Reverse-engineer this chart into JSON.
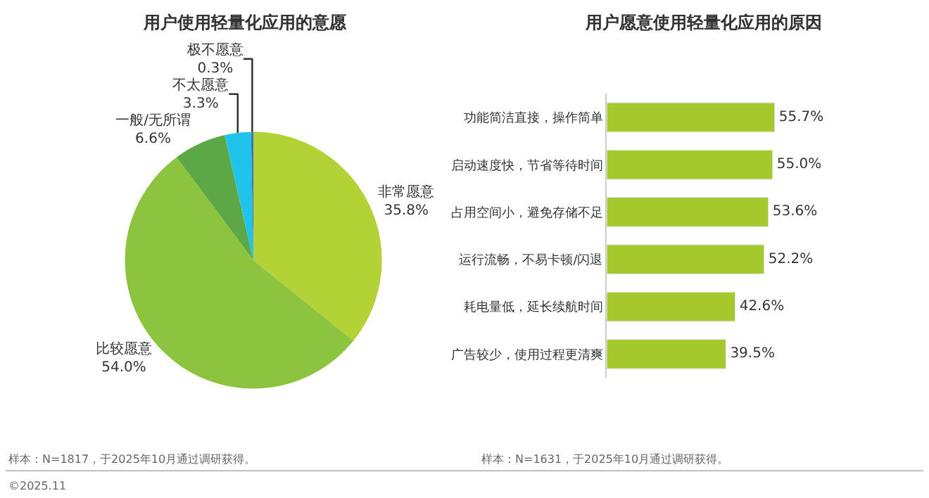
{
  "chart_data": [
    {
      "type": "pie",
      "title": "用户使用轻量化应用的意愿",
      "categories": [
        "非常愿意",
        "比较愿意",
        "一般/无所谓",
        "不太愿意",
        "极不愿意"
      ],
      "values": [
        35.8,
        54.0,
        6.6,
        3.3,
        0.3
      ],
      "value_labels": [
        "35.8%",
        "54.0%",
        "6.6%",
        "3.3%",
        "0.3%"
      ],
      "colors": [
        "#b3d236",
        "#8cc43f",
        "#5ca847",
        "#20c4ea",
        "#3b73b9"
      ],
      "annotations": [
        "样本：N=1817，于2025年10月通过调研获得。",
        "©2025.11"
      ]
    },
    {
      "type": "bar",
      "orientation": "horizontal",
      "title": "用户愿意使用轻量化应用的原因",
      "categories": [
        "功能简洁直接，操作简单",
        "启动速度快，节省等待时间",
        "占用空间小，避免存储不足",
        "运行流畅，不易卡顿/闪退",
        "耗电量低，延长续航时间",
        "广告较少，使用过程更清爽"
      ],
      "values": [
        55.7,
        55.0,
        53.6,
        52.2,
        42.6,
        39.5
      ],
      "value_labels": [
        "55.7%",
        "55.0%",
        "53.6%",
        "52.2%",
        "42.6%",
        "39.5%"
      ],
      "color": "#a5c92d",
      "annotations": [
        "样本：N=1631，于2025年10月通过调研获得。"
      ]
    }
  ]
}
